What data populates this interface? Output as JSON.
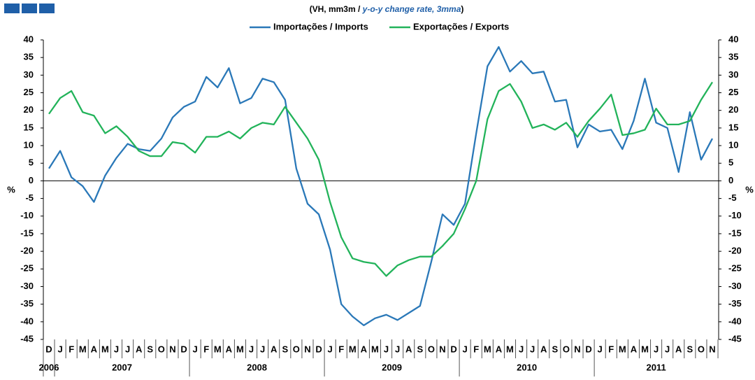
{
  "chart_data": {
    "type": "line",
    "title_parts": [
      "(VH, mm3m / ",
      "y-o-y change rate, 3mma",
      ")"
    ],
    "y_label": "%",
    "categories": [
      "D",
      "J",
      "F",
      "M",
      "A",
      "M",
      "J",
      "J",
      "A",
      "S",
      "O",
      "N",
      "D",
      "J",
      "F",
      "M",
      "A",
      "M",
      "J",
      "J",
      "A",
      "S",
      "O",
      "N",
      "D",
      "J",
      "F",
      "M",
      "A",
      "M",
      "J",
      "J",
      "A",
      "S",
      "O",
      "N",
      "D",
      "J",
      "F",
      "M",
      "A",
      "M",
      "J",
      "J",
      "A",
      "S",
      "O",
      "N",
      "D",
      "J",
      "F",
      "M",
      "A",
      "M",
      "J",
      "J",
      "A",
      "S",
      "O",
      "N"
    ],
    "years": [
      "2006",
      "2007",
      "2008",
      "2009",
      "2010",
      "2011"
    ],
    "ylim": [
      -45,
      40
    ],
    "yticks": [
      -45,
      -40,
      -35,
      -30,
      -25,
      -20,
      -15,
      -10,
      -5,
      0,
      5,
      10,
      15,
      20,
      25,
      30,
      35,
      40
    ],
    "series": [
      {
        "name": "Importações / Imports",
        "color": "#2a78b8",
        "values": [
          3.5,
          8.5,
          1,
          -1.5,
          -6,
          1.5,
          6.5,
          10.5,
          9,
          8.5,
          12,
          18,
          21,
          22.5,
          29.5,
          26.5,
          32,
          22,
          23.5,
          29,
          28,
          23,
          3.5,
          -6.5,
          -9.5,
          -19.5,
          -35,
          -38.5,
          -41,
          -39,
          -38,
          -39.5,
          -37.5,
          -35.5,
          -23,
          -9.5,
          -12.5,
          -6.5,
          13.5,
          32.5,
          38,
          31,
          34,
          30.5,
          31,
          22.5,
          23,
          9.5,
          16,
          14,
          14.5,
          9,
          17,
          29,
          16.5,
          15,
          2.5,
          19.5,
          6,
          12
        ]
      },
      {
        "name": "Exportações / Exports",
        "color": "#22b35a",
        "values": [
          19,
          23.5,
          25.5,
          19.5,
          18.5,
          13.5,
          15.5,
          12.5,
          8.5,
          7,
          7,
          11,
          10.5,
          8,
          12.5,
          12.5,
          14,
          12,
          15,
          16.5,
          16,
          21,
          16.5,
          12,
          6,
          -6,
          -16,
          -22,
          -23,
          -23.5,
          -27,
          -24,
          -22.5,
          -21.5,
          -21.5,
          -18.5,
          -15,
          -8,
          0,
          17.5,
          25.5,
          27.5,
          22.5,
          15,
          16,
          14.5,
          16.5,
          12.5,
          17,
          20.5,
          24.5,
          13,
          13.5,
          14.5,
          20.5,
          16,
          16,
          17,
          23,
          28
        ]
      }
    ]
  }
}
